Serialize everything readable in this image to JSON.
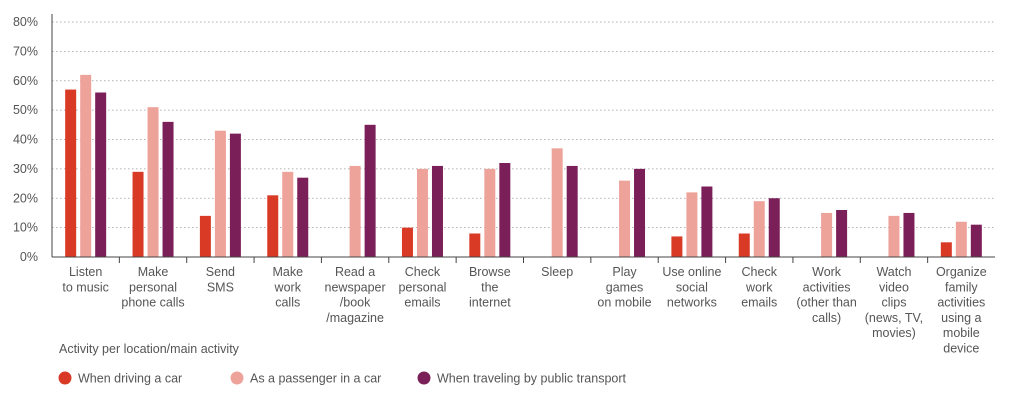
{
  "chart_data": {
    "type": "bar",
    "title": "",
    "xlabel": "Activity per location/main activity",
    "ylabel": "",
    "ylim": [
      0,
      80
    ],
    "y_ticks": [
      "0%",
      "10%",
      "20%",
      "30%",
      "40%",
      "50%",
      "60%",
      "70%",
      "80%"
    ],
    "grid": true,
    "legend_position": "bottom-left",
    "categories": [
      [
        "Listen",
        "to music"
      ],
      [
        "Make",
        "personal",
        "phone calls"
      ],
      [
        "Send",
        "SMS"
      ],
      [
        "Make",
        "work",
        "calls"
      ],
      [
        "Read a",
        "newspaper",
        "/book",
        "/magazine"
      ],
      [
        "Check",
        "personal",
        "emails"
      ],
      [
        "Browse",
        "the",
        "internet"
      ],
      [
        "Sleep"
      ],
      [
        "Play",
        "games",
        "on mobile"
      ],
      [
        "Use online",
        "social",
        "networks"
      ],
      [
        "Check",
        "work",
        "emails"
      ],
      [
        "Work",
        "activities",
        "(other than",
        "calls)"
      ],
      [
        "Watch",
        "video",
        "clips",
        "(news, TV,",
        "movies)"
      ],
      [
        "Organize",
        "family",
        "activities",
        "using a",
        "mobile",
        "device"
      ]
    ],
    "series": [
      {
        "name": "When driving a car",
        "color": "#d93a26",
        "values": [
          57,
          29,
          14,
          21,
          0,
          10,
          8,
          0,
          0,
          7,
          8,
          0,
          0,
          5
        ]
      },
      {
        "name": "As a passenger in a car",
        "color": "#eea39a",
        "values": [
          62,
          51,
          43,
          29,
          31,
          30,
          30,
          37,
          26,
          22,
          19,
          15,
          14,
          12
        ]
      },
      {
        "name": "When traveling by public transport",
        "color": "#7b1f58",
        "values": [
          56,
          46,
          42,
          27,
          45,
          31,
          32,
          31,
          30,
          24,
          20,
          16,
          15,
          11
        ]
      }
    ]
  }
}
